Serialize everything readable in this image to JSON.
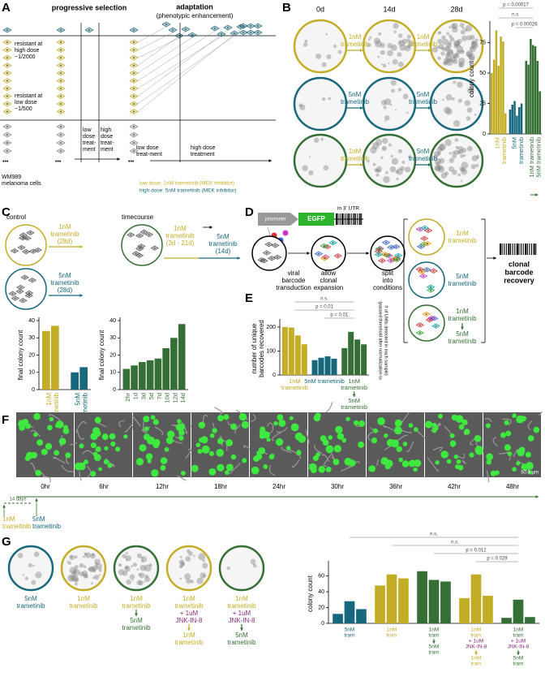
{
  "A": {
    "label": "A",
    "title": "progressive selection",
    "adapt": [
      "adaptation",
      "(phenotypic enhancement)"
    ],
    "high": [
      "resistant at",
      "high dose",
      "~1/2000"
    ],
    "low": [
      "resistant at",
      "low dose",
      "~1/500"
    ],
    "cells": [
      "WM989",
      "melanoma cells"
    ],
    "dots": [
      "•••",
      "•••",
      "•••"
    ],
    "low2": [
      "low",
      "dose",
      "treat-",
      "ment"
    ],
    "high2": [
      "high",
      "dose",
      "treat-",
      "ment"
    ],
    "low3": [
      "low dose",
      "treat-ment"
    ],
    "high3": [
      "high dose",
      "treatment"
    ],
    "legend": [
      "low dose: 1nM trametinib (MEK inhibitor)",
      "high dose: 5nM trametinib (MEK inhibitor)"
    ]
  },
  "B": {
    "label": "B",
    "days": [
      "0d",
      "14d",
      "28d"
    ],
    "arrows": [
      [
        [
          "1nM",
          "trametinib"
        ],
        [
          "1nM",
          "trametinib"
        ]
      ],
      [
        [
          "5nM",
          "trametinib"
        ],
        [
          "5nM",
          "trametinib"
        ]
      ],
      [
        [
          "1nM",
          "trametinib"
        ],
        [
          "5nM",
          "trametinib"
        ]
      ]
    ]
  },
  "C": {
    "label": "C",
    "control": "control",
    "c1": [
      "1nM",
      "trametinib",
      "(28d)"
    ],
    "c2": [
      "5nM",
      "trametinib",
      "(28d)"
    ],
    "timecourse": "timecourse",
    "t1": [
      "1nM",
      "trametinib",
      "(3d - 21d)"
    ],
    "t2": [
      "5nM",
      "trametinib",
      "(14d)"
    ]
  },
  "D": {
    "label": "D",
    "promoter": "promoter",
    "egfp": "EGFP",
    "utr": "in 3' UTR",
    "steps": [
      [
        "viral",
        "barcode",
        "transduction"
      ],
      [
        "allow",
        "clonal",
        "expansion"
      ],
      [
        "split",
        "into",
        "conditions"
      ]
    ],
    "conditions": [
      [
        "1nM",
        "trametinib"
      ],
      [
        "5nM",
        "trametinib"
      ],
      [
        "1nM",
        "trametinib"
      ]
    ],
    "then": [
      "5nM",
      "trametinib"
    ],
    "recovery": [
      "clonal",
      "barcode",
      "recovery"
    ]
  },
  "E": {
    "label": "E"
  },
  "F": {
    "label": "F",
    "times": [
      "0hr",
      "6hr",
      "12hr",
      "18hr",
      "24hr",
      "30hr",
      "36hr",
      "42hr",
      "48hr"
    ],
    "scale": "50.0 µm",
    "days": "14 days",
    "drugs": [
      [
        "1nM",
        "trametinib"
      ],
      [
        "5nM",
        "trametinib"
      ]
    ]
  },
  "G": {
    "label": "G",
    "dishes": [
      {
        "name": [
          "5nM",
          "trametinib"
        ]
      },
      {
        "name": [
          "1nM",
          "trametinib"
        ]
      },
      {
        "name": [
          "1nM",
          "trametinib"
        ],
        "then": [
          "5nM",
          "trametinib"
        ]
      },
      {
        "name": [
          "1nM",
          "trametinib",
          "+ 1uM",
          "JNK-IN-8"
        ],
        "then": [
          "1nM",
          "trametinib"
        ]
      },
      {
        "name": [
          "1nM",
          "trametinib",
          "+ 1uM",
          "JNK-IN-8"
        ],
        "then": [
          "5nM",
          "trametinib"
        ]
      }
    ]
  },
  "chart_data": [
    {
      "type": "bar",
      "ylabel": [
        "colony count"
      ],
      "ylim": [
        0,
        90
      ],
      "yticks": [
        0,
        25,
        50,
        75
      ],
      "annotations": [
        "p = 0.00017",
        "n.s.",
        "p = 0.00026"
      ],
      "series": [
        {
          "name": [
            "1nM",
            "trametinib"
          ],
          "color": "#c4ad26",
          "values": [
            50,
            61,
            85,
            56,
            80,
            76,
            17
          ]
        },
        {
          "name": [
            "5nM",
            "trametinib"
          ],
          "color": "#17687d",
          "values": [
            20,
            24,
            27,
            15,
            22,
            25
          ]
        },
        {
          "name": [
            "1nM trametinib"
          ],
          "then": [
            "5nM trametinib"
          ],
          "color": "#356f35",
          "values": [
            60,
            57,
            78,
            73,
            72,
            60,
            35
          ]
        }
      ]
    },
    {
      "type": "bar",
      "ylabel": [
        "final colony count"
      ],
      "ylim": [
        0,
        40
      ],
      "yticks": [
        0,
        10,
        20,
        30,
        40
      ],
      "series": [
        {
          "name": [
            "1nM",
            "trametinib"
          ],
          "color": "#c4ad26",
          "values": [
            34,
            37
          ]
        },
        {
          "name": [
            "5nM",
            "trametinib"
          ],
          "color": "#17687d",
          "values": [
            10,
            13
          ]
        }
      ]
    },
    {
      "type": "bar",
      "ylabel": [
        "final colony count"
      ],
      "ylim": [
        0,
        40
      ],
      "yticks": [
        0,
        10,
        20,
        30,
        40
      ],
      "categories": [
        "2hr",
        "1d",
        "3d",
        "5d",
        "7d",
        "10d",
        "12d",
        "14d"
      ],
      "xlabel": [
        "time in 1nM trametinib",
        "before 5nM trametinib challenge"
      ],
      "series": [
        {
          "color": "#356f35",
          "values": [
            12,
            14,
            16,
            17,
            18,
            24,
            30,
            38
          ]
        }
      ]
    },
    {
      "type": "bar",
      "ylabel": [
        "number of unique",
        "barcodes recovered"
      ],
      "note": [
        "(passed threshold after normalization to",
        "# of UMIs detected in each sample)"
      ],
      "ylim": [
        0,
        220
      ],
      "yticks": [
        0,
        100,
        200
      ],
      "annotations": [
        "n.s.",
        "p = 0.01",
        "p = 0.01"
      ],
      "series": [
        {
          "name": [
            "1nM",
            "trametinib"
          ],
          "color": "#c4ad26",
          "values": [
            200,
            198,
            165,
            128
          ]
        },
        {
          "name": [
            "5nM trametinib"
          ],
          "color": "#17687d",
          "values": [
            62,
            72,
            78,
            68
          ]
        },
        {
          "name": [
            "1nM",
            "trametinib"
          ],
          "then": [
            "5nM",
            "trametinib"
          ],
          "color": "#356f35",
          "values": [
            112,
            180,
            148,
            128
          ]
        }
      ]
    },
    {
      "type": "bar",
      "ylabel": [
        "colony count"
      ],
      "ylim": [
        0,
        75
      ],
      "yticks": [
        0,
        20,
        40,
        60
      ],
      "annotations": [
        "n.s.",
        "n.s.",
        "p = 0.012",
        "p = 0.029"
      ],
      "series": [
        {
          "name": [
            "5nM",
            "tram"
          ],
          "color": "#17687d",
          "values": [
            12,
            28,
            18
          ]
        },
        {
          "name": [
            "1nM",
            "tram"
          ],
          "color": "#c4ad26",
          "values": [
            48,
            62,
            57
          ]
        },
        {
          "name": [
            "1nM",
            "tram"
          ],
          "then": [
            "5nM",
            "tram"
          ],
          "color": "#356f35",
          "values": [
            66,
            55,
            53
          ]
        },
        {
          "name": [
            "1nM",
            "tram",
            "+ 1uM",
            "JNK-IN-8"
          ],
          "then": [
            "1nM",
            "tram"
          ],
          "color": "#c4ad26",
          "values": [
            32,
            62,
            35
          ]
        },
        {
          "name": [
            "1nM",
            "tram",
            "+ 1uM",
            "JNK-IN-8"
          ],
          "then": [
            "5nM",
            "tram"
          ],
          "color": "#356f35",
          "values": [
            7,
            30,
            8
          ]
        }
      ]
    }
  ]
}
